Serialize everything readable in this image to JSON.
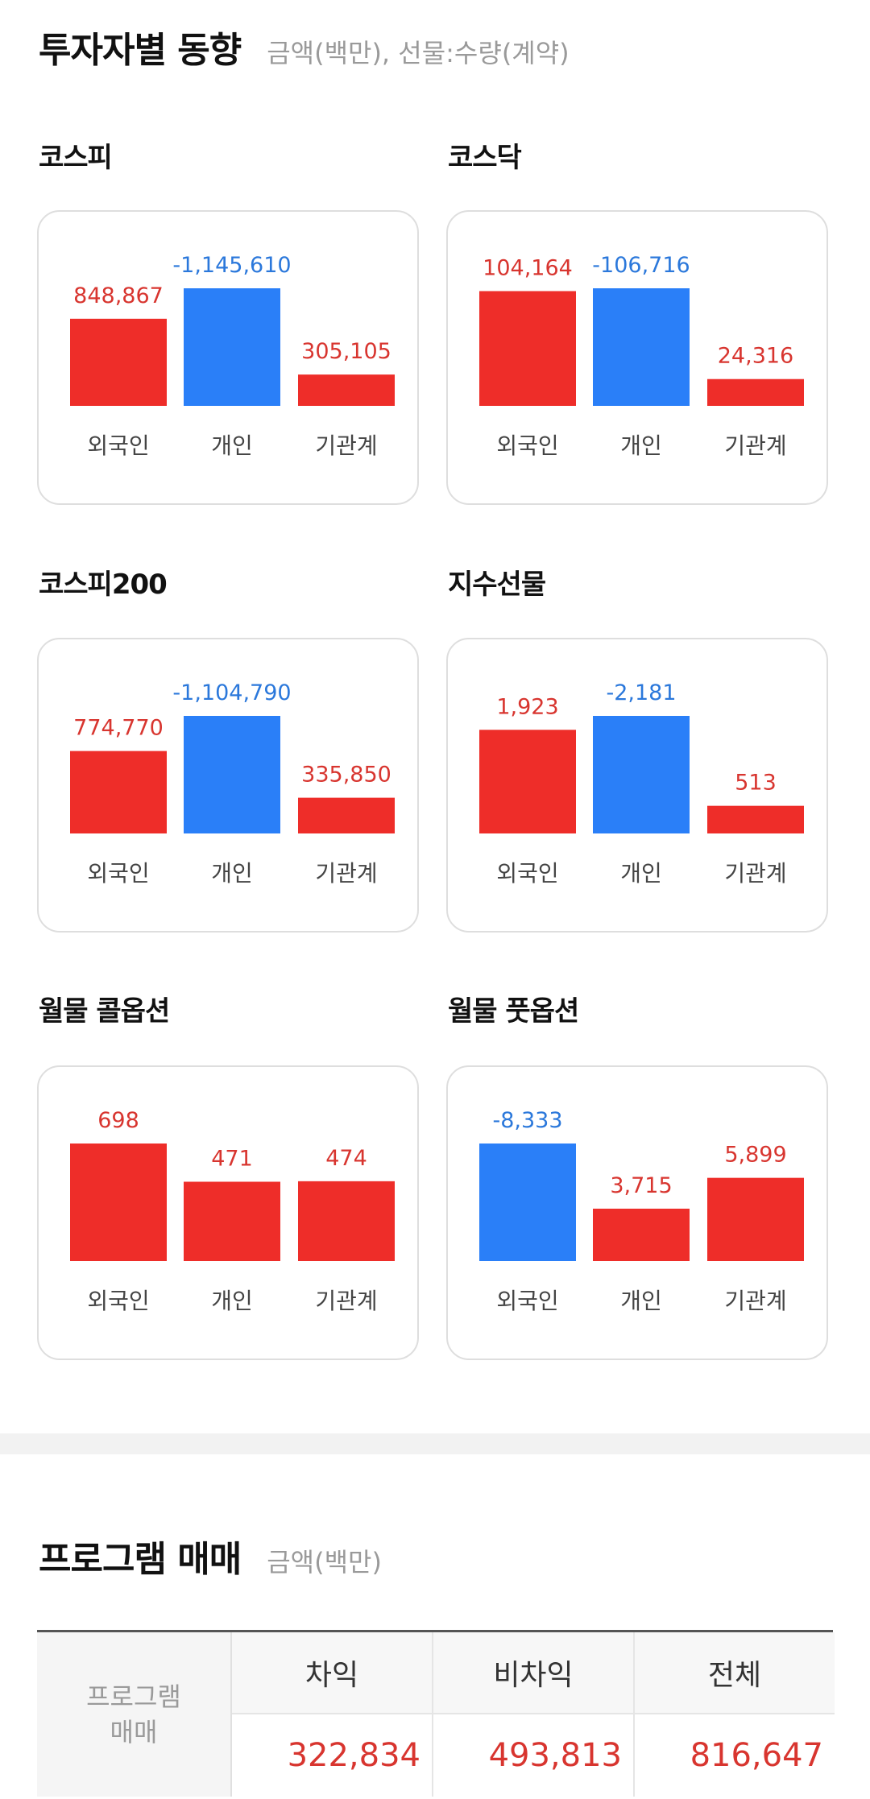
{
  "investor_section": {
    "title": "투자자별 동향",
    "subtitle": "금액(백만), 선물:수량(계약)"
  },
  "colors": {
    "positive": "#ee2d29",
    "negative": "#2a7ff8",
    "positive_text": "#d8352f",
    "negative_text": "#2b78db"
  },
  "chart_data": [
    {
      "type": "bar",
      "title": "코스피",
      "categories": [
        "외국인",
        "개인",
        "기관계"
      ],
      "values": [
        848867,
        -1145610,
        305105
      ],
      "labels": [
        "848,867",
        "-1,145,610",
        "305,105"
      ]
    },
    {
      "type": "bar",
      "title": "코스닥",
      "categories": [
        "외국인",
        "개인",
        "기관계"
      ],
      "values": [
        104164,
        -106716,
        24316
      ],
      "labels": [
        "104,164",
        "-106,716",
        "24,316"
      ]
    },
    {
      "type": "bar",
      "title": "코스피200",
      "categories": [
        "외국인",
        "개인",
        "기관계"
      ],
      "values": [
        774770,
        -1104790,
        335850
      ],
      "labels": [
        "774,770",
        "-1,104,790",
        "335,850"
      ]
    },
    {
      "type": "bar",
      "title": "지수선물",
      "categories": [
        "외국인",
        "개인",
        "기관계"
      ],
      "values": [
        1923,
        -2181,
        513
      ],
      "labels": [
        "1,923",
        "-2,181",
        "513"
      ]
    },
    {
      "type": "bar",
      "title": "월물 콜옵션",
      "categories": [
        "외국인",
        "개인",
        "기관계"
      ],
      "values": [
        698,
        471,
        474
      ],
      "labels": [
        "698",
        "471",
        "474"
      ]
    },
    {
      "type": "bar",
      "title": "월물 풋옵션",
      "categories": [
        "외국인",
        "개인",
        "기관계"
      ],
      "values": [
        -8333,
        3715,
        5899
      ],
      "labels": [
        "-8,333",
        "3,715",
        "5,899"
      ]
    }
  ],
  "program_section": {
    "title": "프로그램 매매",
    "subtitle": "금액(백만)",
    "row_label_line1": "프로그램",
    "row_label_line2": "매매",
    "headers": [
      "차익",
      "비차익",
      "전체"
    ],
    "values": [
      "322,834",
      "493,813",
      "816,647"
    ]
  }
}
